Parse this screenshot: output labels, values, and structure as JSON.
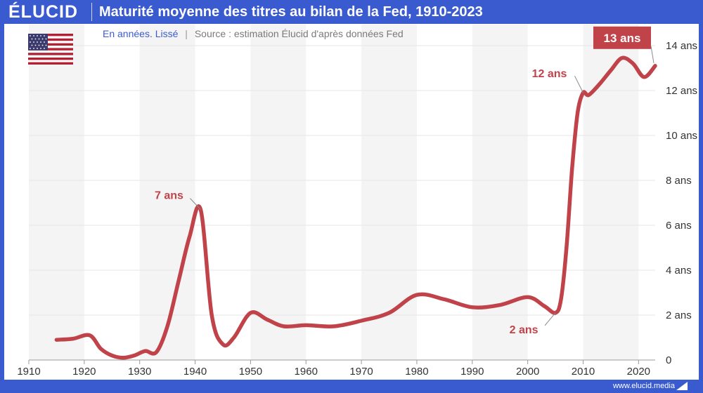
{
  "header": {
    "brand": "ÉLUCID",
    "title": "Maturité moyenne des titres au bilan de la Fed, 1910-2023"
  },
  "subtitle": {
    "units": "En années. Lissé",
    "separator": "|",
    "source": "Source : estimation Élucid d'après données Fed"
  },
  "footer": {
    "url": "www.elucid.media"
  },
  "flag": {
    "icon": "us-flag-icon"
  },
  "colors": {
    "brand_blue": "#3a5bd0",
    "line": "#c0434a",
    "band": "#f4f4f4",
    "grid": "#e6e6e6"
  },
  "chart_data": {
    "type": "line",
    "title": "Maturité moyenne des titres au bilan de la Fed, 1910-2023",
    "xlabel": "",
    "ylabel": "",
    "xlim": [
      1910,
      2023
    ],
    "ylim": [
      0,
      14
    ],
    "x_ticks": [
      1910,
      1920,
      1930,
      1940,
      1950,
      1960,
      1970,
      1980,
      1990,
      2000,
      2010,
      2020
    ],
    "y_ticks": [
      0,
      2,
      4,
      6,
      8,
      10,
      12,
      14
    ],
    "y_tick_labels": [
      "0",
      "2 ans",
      "4 ans",
      "6 ans",
      "8 ans",
      "10 ans",
      "12 ans",
      "14 ans"
    ],
    "grid": true,
    "legend": "none",
    "series": [
      {
        "x": [
          1915,
          1918,
          1921,
          1923,
          1925,
          1927,
          1929,
          1931,
          1933,
          1935,
          1937,
          1939,
          1941,
          1943,
          1945,
          1947,
          1950,
          1953,
          1956,
          1960,
          1965,
          1970,
          1975,
          1980,
          1985,
          1990,
          1995,
          2000,
          2003,
          2005,
          2006,
          2007,
          2008,
          2009,
          2010,
          2011,
          2013,
          2015,
          2017,
          2019,
          2021,
          2023
        ],
        "y": [
          0.9,
          0.95,
          1.1,
          0.5,
          0.2,
          0.1,
          0.2,
          0.4,
          0.35,
          1.5,
          3.5,
          5.5,
          6.7,
          2.0,
          0.7,
          1.0,
          2.1,
          1.8,
          1.5,
          1.55,
          1.5,
          1.75,
          2.1,
          2.9,
          2.7,
          2.35,
          2.45,
          2.8,
          2.4,
          2.1,
          2.7,
          5.0,
          8.5,
          11.0,
          11.9,
          11.8,
          12.3,
          12.9,
          13.45,
          13.2,
          12.6,
          13.1
        ]
      }
    ],
    "annotations": [
      {
        "label": "7 ans",
        "x": 1941,
        "y": 6.7,
        "style": "text"
      },
      {
        "label": "2 ans",
        "x": 2005,
        "y": 2.1,
        "style": "text"
      },
      {
        "label": "12 ans",
        "x": 2010,
        "y": 11.9,
        "style": "text"
      },
      {
        "label": "13 ans",
        "x": 2023,
        "y": 13.1,
        "style": "box"
      }
    ]
  }
}
